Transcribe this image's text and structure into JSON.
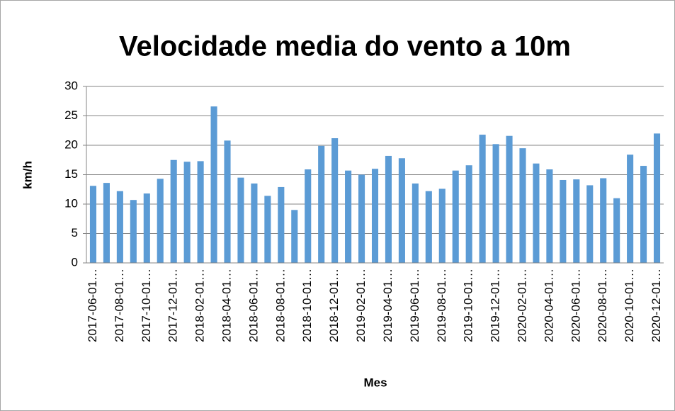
{
  "chart_data": {
    "type": "bar",
    "title": "Velocidade media do vento a 10m",
    "x_label": "Mes",
    "y_label": "km/h",
    "color": "#5b9bd5",
    "grid": true,
    "categories": [
      "2017-06-01…",
      null,
      "2017-08-01…",
      null,
      "2017-10-01…",
      null,
      "2017-12-01…",
      null,
      "2018-02-01…",
      null,
      "2018-04-01…",
      null,
      "2018-06-01…",
      null,
      "2018-08-01…",
      null,
      "2018-10-01…",
      null,
      "2018-12-01…",
      null,
      "2019-02-01…",
      null,
      "2019-04-01…",
      null,
      "2019-06-01…",
      null,
      "2019-08-01…",
      null,
      "2019-10-01…",
      null,
      "2019-12-01…",
      null,
      "2020-02-01…",
      null,
      "2020-04-01…",
      null,
      "2020-06-01…",
      null,
      "2020-08-01…",
      null,
      "2020-10-01…",
      null,
      "2020-12-01…"
    ],
    "values": [
      13.1,
      13.6,
      12.2,
      10.7,
      11.8,
      14.3,
      17.5,
      17.2,
      17.3,
      26.6,
      20.8,
      14.5,
      13.5,
      11.4,
      12.9,
      9.0,
      15.9,
      19.9,
      21.2,
      15.7,
      15.0,
      16.0,
      18.2,
      17.8,
      13.5,
      12.2,
      12.6,
      15.7,
      16.6,
      21.8,
      20.2,
      21.6,
      19.5,
      16.9,
      15.9,
      14.1,
      14.2,
      13.2,
      14.4,
      11.0,
      18.4,
      16.5,
      22.0
    ],
    "ylim": [
      0,
      30
    ],
    "yticks": [
      0,
      5,
      10,
      15,
      20,
      25,
      30
    ]
  }
}
